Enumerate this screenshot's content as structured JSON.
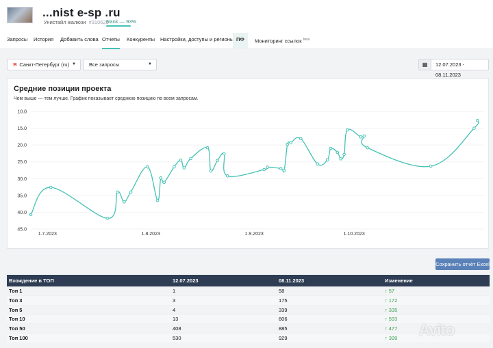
{
  "header": {
    "site_title": "...nist e-sp .ru",
    "site_subtitle": "Унистайл жалюзи",
    "site_id": "#310625",
    "rank": "Rank — 93%"
  },
  "tabs": [
    {
      "label": "Запросы"
    },
    {
      "label": "История"
    },
    {
      "label": "Добавить слова"
    },
    {
      "label": "Отчеты"
    },
    {
      "label": "Конкуренты"
    },
    {
      "label": "Настройки, доступы и регионы"
    },
    {
      "label": "ПФ"
    },
    {
      "label": "Мониторинг ссылок",
      "sup": "beta"
    }
  ],
  "filters": {
    "region": "Санкт-Петербург (ru)",
    "region_prefix": "Я",
    "queries": "Все запросы",
    "date_range": "12.07.2023 - 08.11.2023"
  },
  "chart_card": {
    "title": "Средние позиции проекта",
    "subtitle": "Чем выше — тем лучше. График показывает среднюю позицию по всем запросам."
  },
  "chart_data": {
    "type": "line",
    "title": "Средние позиции проекта",
    "y_inverted": true,
    "ylim": [
      10,
      45
    ],
    "yticks": [
      "10.0",
      "15.0",
      "20.0",
      "25.0",
      "30.0",
      "35.0",
      "40.0",
      "45.0"
    ],
    "xlim": [
      "2023-06-26",
      "2023-11-09"
    ],
    "xticks": [
      {
        "label": "1.7.2023",
        "date": "2023-07-01"
      },
      {
        "label": "1.8.2023",
        "date": "2023-08-01"
      },
      {
        "label": "1.9.2023",
        "date": "2023-09-01"
      },
      {
        "label": "1.10.2023",
        "date": "2023-10-01"
      }
    ],
    "line_color": "#45c2b5",
    "series": [
      {
        "x": [
          "2023-06-26",
          "2023-07-02",
          "2023-07-19",
          "2023-07-22",
          "2023-07-24",
          "2023-07-26",
          "2023-07-31",
          "2023-08-03",
          "2023-08-04",
          "2023-08-05",
          "2023-08-08",
          "2023-08-10",
          "2023-08-11",
          "2023-08-13",
          "2023-08-18",
          "2023-08-19",
          "2023-08-21",
          "2023-08-23",
          "2023-08-24",
          "2023-09-04",
          "2023-09-05",
          "2023-09-09",
          "2023-09-10",
          "2023-09-11",
          "2023-09-12",
          "2023-09-15",
          "2023-09-20",
          "2023-09-23",
          "2023-09-24",
          "2023-09-26",
          "2023-09-27",
          "2023-09-28",
          "2023-09-29",
          "2023-10-03",
          "2023-10-04",
          "2023-10-05",
          "2023-10-24",
          "2023-11-06",
          "2023-11-07"
        ],
        "y": [
          40.7,
          32.6,
          41.8,
          34.0,
          36.9,
          34.0,
          26.5,
          36.5,
          29.8,
          31.1,
          26.5,
          24.5,
          26.8,
          24.0,
          20.8,
          27.7,
          24.6,
          22.6,
          29.2,
          27.3,
          26.6,
          27.0,
          27.6,
          19.8,
          19.3,
          18.1,
          25.6,
          24.4,
          21.0,
          22.2,
          24.1,
          22.8,
          15.5,
          17.6,
          17.3,
          20.8,
          26.3,
          15.0,
          12.7
        ]
      }
    ]
  },
  "save_button": "Сохранить отчёт Excel",
  "table": {
    "headers": [
      "Вхождение в ТОП",
      "12.07.2023",
      "08.11.2023",
      "Изменение"
    ],
    "rows": [
      {
        "label": "Топ 1",
        "a": "1",
        "b": "58",
        "change": "57"
      },
      {
        "label": "Топ 3",
        "a": "3",
        "b": "175",
        "change": "172"
      },
      {
        "label": "Топ 5",
        "a": "4",
        "b": "339",
        "change": "335"
      },
      {
        "label": "Топ 10",
        "a": "13",
        "b": "606",
        "change": "593"
      },
      {
        "label": "Топ 50",
        "a": "408",
        "b": "885",
        "change": "477"
      },
      {
        "label": "Топ 100",
        "a": "530",
        "b": "929",
        "change": "399"
      }
    ],
    "change_arrow": "↑"
  },
  "watermark": "Avito"
}
